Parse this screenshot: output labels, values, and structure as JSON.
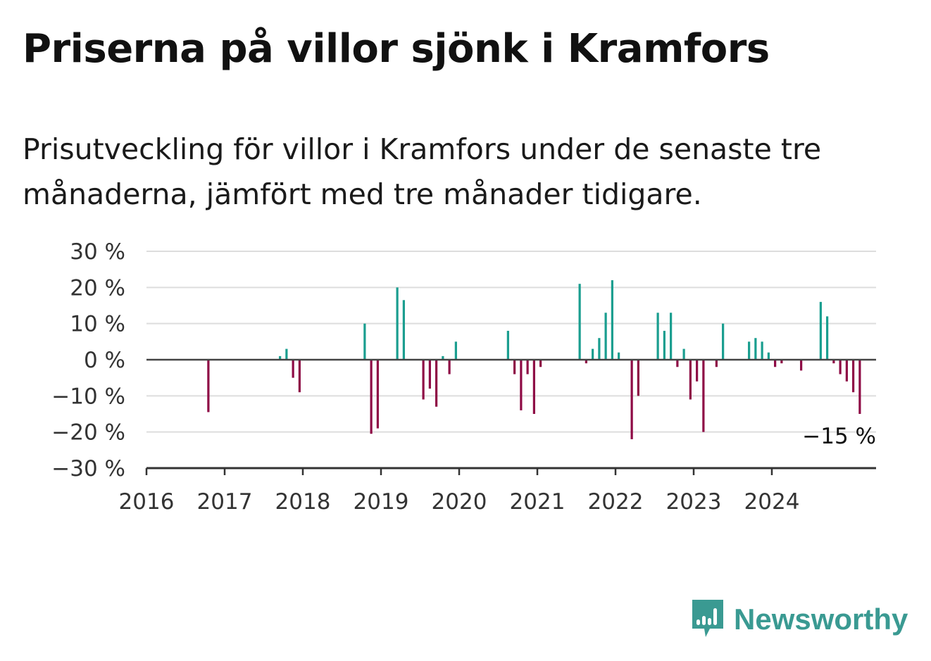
{
  "title": "Priserna på villor sjönk i Kramfors",
  "subtitle": "Prisutveckling för villor i Kramfors under de senaste tre månaderna, jämfört med tre månader tidigare.",
  "brand": {
    "name": "Newsworthy",
    "color": "#3a9a92",
    "icon": "newsworthy-logo-icon"
  },
  "colors": {
    "positive": "#1a9e8f",
    "negative": "#8e0a45",
    "grid": "#dddddd",
    "axis": "#444444"
  },
  "chart_data": {
    "type": "bar",
    "title": "Priserna på villor sjönk i Kramfors",
    "ylim": [
      -30,
      30
    ],
    "y_ticks": [
      30,
      20,
      10,
      0,
      -10,
      -20,
      -30
    ],
    "y_tick_labels": [
      "30 %",
      "20 %",
      "10 %",
      "0 %",
      "−10 %",
      "−20 %",
      "−30 %"
    ],
    "x_ticks": [
      2016,
      2017,
      2018,
      2019,
      2020,
      2021,
      2022,
      2023,
      2024
    ],
    "x_tick_labels": [
      "2016",
      "2017",
      "2018",
      "2019",
      "2020",
      "2021",
      "2022",
      "2023",
      "2024"
    ],
    "grid": true,
    "end_label": "−15 %",
    "series": [
      {
        "values": [
          {
            "date": "2016-10",
            "value": -14.5
          },
          {
            "date": "2017-09",
            "value": 1
          },
          {
            "date": "2017-10",
            "value": 3
          },
          {
            "date": "2017-11",
            "value": -5
          },
          {
            "date": "2017-12",
            "value": -9
          },
          {
            "date": "2018-10",
            "value": 10
          },
          {
            "date": "2018-11",
            "value": -20.5
          },
          {
            "date": "2018-12",
            "value": -19
          },
          {
            "date": "2019-03",
            "value": 20
          },
          {
            "date": "2019-04",
            "value": 16.5
          },
          {
            "date": "2019-07",
            "value": -11
          },
          {
            "date": "2019-08",
            "value": -8
          },
          {
            "date": "2019-09",
            "value": -13
          },
          {
            "date": "2019-10",
            "value": 1
          },
          {
            "date": "2019-11",
            "value": -4
          },
          {
            "date": "2019-12",
            "value": 5
          },
          {
            "date": "2020-08",
            "value": 8
          },
          {
            "date": "2020-09",
            "value": -4
          },
          {
            "date": "2020-10",
            "value": -14
          },
          {
            "date": "2020-11",
            "value": -4
          },
          {
            "date": "2020-12",
            "value": -15
          },
          {
            "date": "2021-01",
            "value": -2
          },
          {
            "date": "2021-07",
            "value": 21
          },
          {
            "date": "2021-08",
            "value": -1
          },
          {
            "date": "2021-09",
            "value": 3
          },
          {
            "date": "2021-10",
            "value": 6
          },
          {
            "date": "2021-11",
            "value": 13
          },
          {
            "date": "2021-12",
            "value": 22
          },
          {
            "date": "2022-01",
            "value": 2
          },
          {
            "date": "2022-03",
            "value": -22
          },
          {
            "date": "2022-04",
            "value": -10
          },
          {
            "date": "2022-07",
            "value": 13
          },
          {
            "date": "2022-08",
            "value": 8
          },
          {
            "date": "2022-09",
            "value": 13
          },
          {
            "date": "2022-10",
            "value": -2
          },
          {
            "date": "2022-11",
            "value": 3
          },
          {
            "date": "2022-12",
            "value": -11
          },
          {
            "date": "2023-01",
            "value": -6
          },
          {
            "date": "2023-02",
            "value": -20
          },
          {
            "date": "2023-04",
            "value": -2
          },
          {
            "date": "2023-05",
            "value": 10
          },
          {
            "date": "2023-09",
            "value": 5
          },
          {
            "date": "2023-10",
            "value": 6
          },
          {
            "date": "2023-11",
            "value": 5
          },
          {
            "date": "2023-12",
            "value": 2
          },
          {
            "date": "2024-01",
            "value": -2
          },
          {
            "date": "2024-02",
            "value": -1
          },
          {
            "date": "2024-05",
            "value": -3
          },
          {
            "date": "2024-08",
            "value": 16
          },
          {
            "date": "2024-09",
            "value": 12
          },
          {
            "date": "2024-10",
            "value": -1
          },
          {
            "date": "2024-11",
            "value": -4
          },
          {
            "date": "2024-12",
            "value": -6
          },
          {
            "date": "2025-01",
            "value": -9
          },
          {
            "date": "2025-02",
            "value": -15
          }
        ]
      }
    ]
  }
}
